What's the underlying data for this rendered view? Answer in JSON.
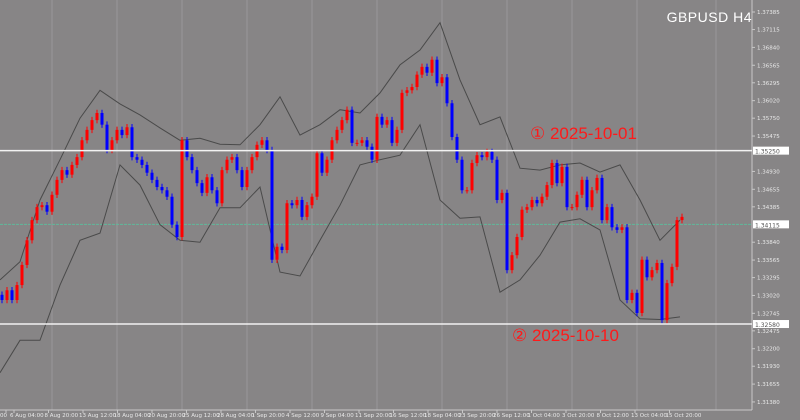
{
  "chart_data": {
    "type": "candlestick",
    "title": "GBPUSD  H4",
    "symbol": "GBPUSD",
    "timeframe": "H4",
    "ylim": [
      1.313,
      1.3757
    ],
    "grid": true,
    "colors": {
      "background": "#878586",
      "bull": "#ff0000",
      "bear": "#0000ff",
      "bands": "#4a4a4a",
      "hline": "#f2f2f2",
      "price_line": "#5fb89a",
      "annotation": "#ff1a1a",
      "grid": "#9a9899"
    },
    "y_ticks": [
      "1.37385",
      "1.37115",
      "1.36840",
      "1.36565",
      "1.36295",
      "1.36020",
      "1.35750",
      "1.35475",
      "1.34930",
      "1.34655",
      "1.34385",
      "1.33840",
      "1.33565",
      "1.33295",
      "1.33020",
      "1.32745",
      "1.32475",
      "1.32200",
      "1.31930",
      "1.31655",
      "1.31380"
    ],
    "x_ticks": [
      "00",
      "6 Aug 04:00",
      "8 Aug 20:00",
      "13 Aug 12:00",
      "18 Aug 04:00",
      "20 Aug 20:00",
      "25 Aug 12:00",
      "28 Aug 04:00",
      "1 Sep 20:00",
      "4 Sep 12:00",
      "9 Sep 04:00",
      "11 Sep 20:00",
      "16 Sep 12:00",
      "18 Sep 04:00",
      "23 Sep 20:00",
      "26 Sep 12:00",
      "1 Oct 04:00",
      "3 Oct 20:00",
      "8 Oct 12:00",
      "13 Oct 04:00",
      "15 Oct 20:00"
    ],
    "closes": [
      1.3295,
      1.331,
      1.3295,
      1.3318,
      1.3349,
      1.3387,
      1.3418,
      1.3438,
      1.3441,
      1.3431,
      1.3457,
      1.348,
      1.3495,
      1.3488,
      1.3503,
      1.3515,
      1.3541,
      1.3557,
      1.3572,
      1.3583,
      1.3565,
      1.3526,
      1.3541,
      1.3557,
      1.3549,
      1.3561,
      1.3515,
      1.3511,
      1.3503,
      1.3491,
      1.348,
      1.3469,
      1.3464,
      1.3454,
      1.3411,
      1.3392,
      1.3541,
      1.3515,
      1.3495,
      1.3475,
      1.346,
      1.3484,
      1.3464,
      1.3444,
      1.3495,
      1.3511,
      1.3515,
      1.3495,
      1.3469,
      1.3495,
      1.3515,
      1.3534,
      1.3541,
      1.3526,
      1.3357,
      1.3377,
      1.3372,
      1.3444,
      1.3441,
      1.3449,
      1.3423,
      1.3441,
      1.3454,
      1.3521,
      1.3491,
      1.3511,
      1.3541,
      1.3557,
      1.3572,
      1.3588,
      1.3537,
      1.3537,
      1.3541,
      1.3531,
      1.3511,
      1.3577,
      1.3565,
      1.3572,
      1.3537,
      1.3557,
      1.3614,
      1.3618,
      1.3623,
      1.3642,
      1.3654,
      1.3645,
      1.3665,
      1.3629,
      1.3638,
      1.3598,
      1.3546,
      1.3511,
      1.3464,
      1.3464,
      1.3506,
      1.3518,
      1.3515,
      1.3523,
      1.3511,
      1.3449,
      1.346,
      1.3341,
      1.3364,
      1.3392,
      1.3434,
      1.3438,
      1.3449,
      1.3444,
      1.3454,
      1.3472,
      1.3506,
      1.3475,
      1.35,
      1.3438,
      1.3438,
      1.3457,
      1.348,
      1.3438,
      1.3464,
      1.3483,
      1.3418,
      1.3438,
      1.3407,
      1.3403,
      1.3407,
      1.3295,
      1.3306,
      1.3275,
      1.3357,
      1.333,
      1.3341,
      1.3352,
      1.3264,
      1.3321,
      1.3346,
      1.3418,
      1.3423
    ],
    "bollinger_upper": [
      1.3326,
      1.3354,
      1.3449,
      1.3511,
      1.3575,
      1.3618,
      1.3597,
      1.358,
      1.356,
      1.3541,
      1.3544,
      1.3535,
      1.3534,
      1.3565,
      1.3608,
      1.3549,
      1.3565,
      1.3588,
      1.3583,
      1.3614,
      1.3657,
      1.368,
      1.3722,
      1.3634,
      1.3565,
      1.3577,
      1.3498,
      1.3495,
      1.3503,
      1.3506,
      1.3492,
      1.3503,
      1.3449,
      1.3387,
      1.3418
    ],
    "bollinger_lower": [
      1.3183,
      1.3233,
      1.3233,
      1.3318,
      1.3387,
      1.3398,
      1.3503,
      1.3472,
      1.3411,
      1.3387,
      1.3384,
      1.3437,
      1.3437,
      1.3469,
      1.3338,
      1.3332,
      1.3387,
      1.3441,
      1.3503,
      1.3511,
      1.3518,
      1.3565,
      1.3449,
      1.3421,
      1.3423,
      1.3307,
      1.3326,
      1.3364,
      1.3415,
      1.342,
      1.3403,
      1.3295,
      1.3266,
      1.3265,
      1.3269
    ],
    "horizontal_lines": [
      {
        "price": 1.3525,
        "label": "1.35250"
      },
      {
        "price": 1.3258,
        "label": "1.32580"
      }
    ],
    "current_price": {
      "price": 1.34115,
      "label": "1.34115"
    },
    "annotations": [
      {
        "text": "① 2025-10-01"
      },
      {
        "text": "② 2025-10-10"
      }
    ]
  }
}
